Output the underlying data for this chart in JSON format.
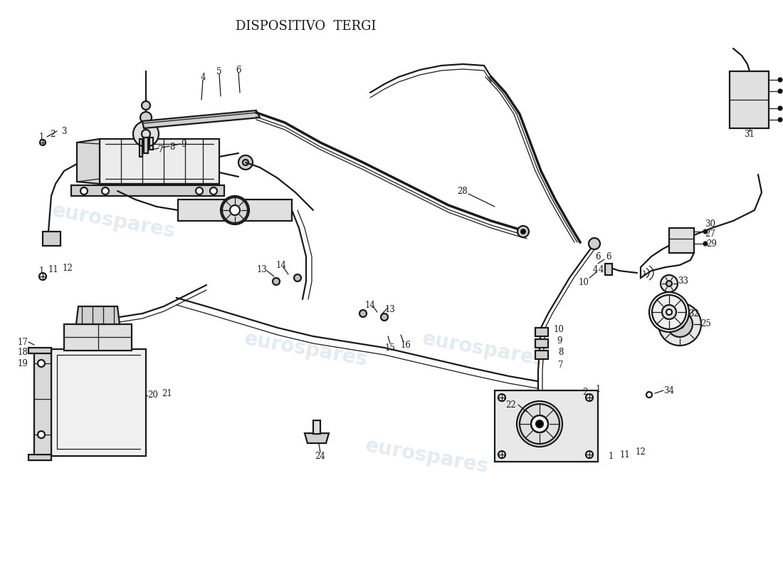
{
  "title": "DISPOSITIVO  TERGI",
  "title_fontsize": 13,
  "background_color": "#ffffff",
  "watermark_text": "eurospares",
  "watermark_color": "#b0c8d8",
  "watermark_alpha": 0.35,
  "fig_width": 11.0,
  "fig_height": 8.0,
  "dpi": 100,
  "line_color": "#1a1a1a",
  "label_fontsize": 8.5
}
